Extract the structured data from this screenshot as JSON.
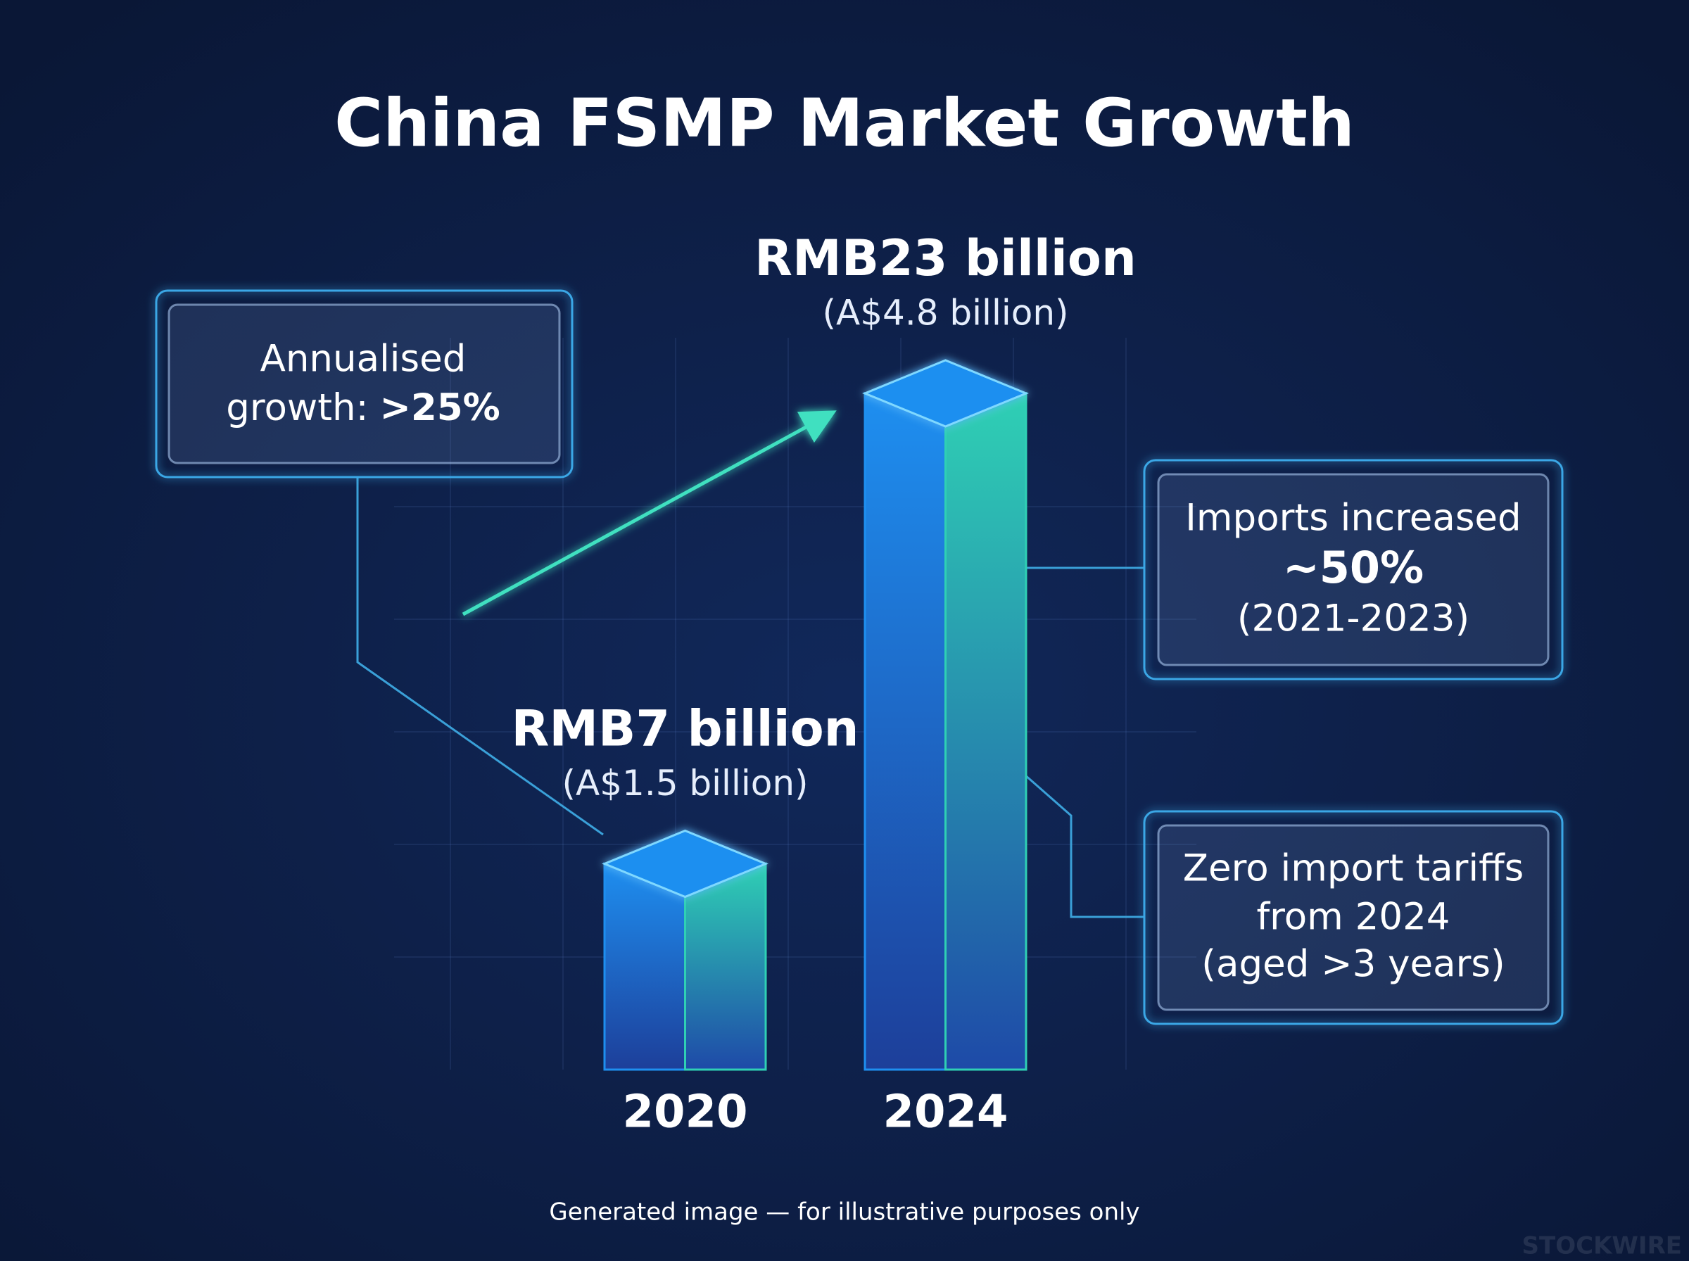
{
  "chart_data": {
    "type": "bar",
    "title": "China FSMP Market Growth",
    "categories": [
      "2020",
      "2024"
    ],
    "values": [
      7,
      23
    ],
    "value_labels": [
      "RMB7 billion",
      "RMB23 billion"
    ],
    "secondary_labels": [
      "(A$1.5 billion)",
      "(A$4.8 billion)"
    ],
    "color": "#1e8ff0",
    "accent": "#2fd0b4",
    "annotations": [
      {
        "lines": [
          "Annualised",
          "growth:"
        ],
        "emphasis": ">25%"
      },
      {
        "lines": [
          "Imports increased",
          "(2021-2023)"
        ],
        "emphasis": "~50%"
      },
      {
        "lines": [
          "Zero import tariffs",
          "from 2024",
          "(aged >3 years)"
        ]
      }
    ],
    "footer": "Generated image — for illustrative purposes only",
    "watermark": "STOCKWIRE"
  }
}
